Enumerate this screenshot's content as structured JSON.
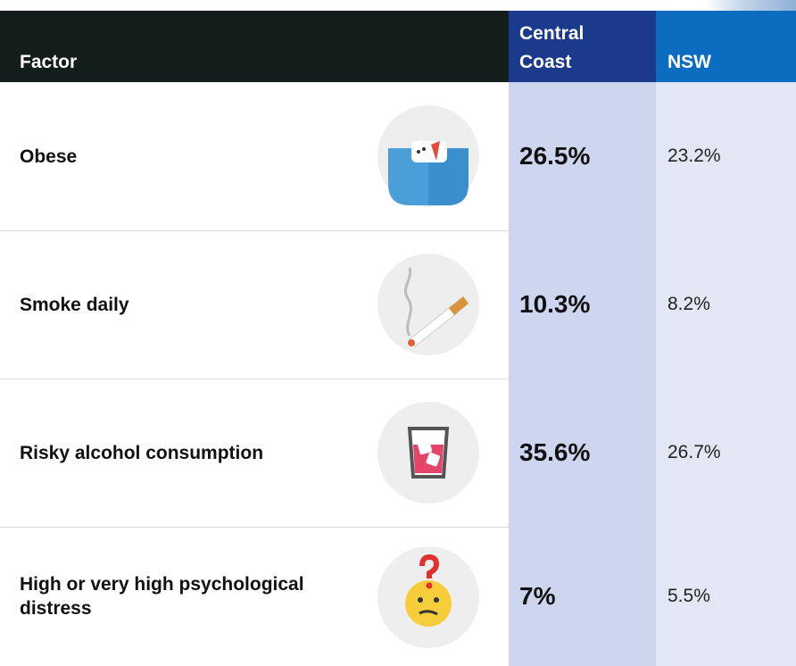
{
  "table": {
    "header": [
      "Factor",
      "Central Coast",
      "NSW"
    ],
    "rows": [
      [
        "Obese",
        "26.5%",
        "23.2%"
      ],
      [
        "Smoke daily",
        "10.3%",
        "8.2%"
      ],
      [
        "Risky alcohol consumption",
        "35.6%",
        "26.7%"
      ],
      [
        "High or very high psychological distress",
        "7%",
        "5.5%"
      ]
    ]
  }
}
